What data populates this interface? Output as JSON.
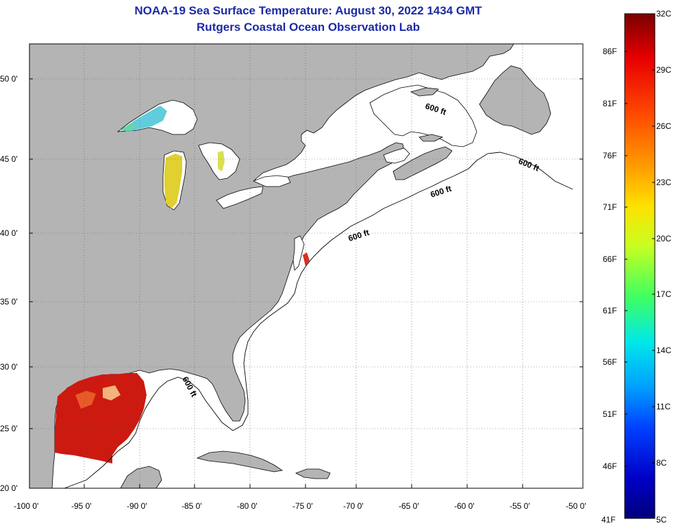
{
  "title": {
    "line1": "NOAA-19 Sea Surface Temperature:  August 30, 2022 1434 GMT",
    "line2": "Rutgers Coastal Ocean Observation Lab"
  },
  "map": {
    "lat_ticks": [
      "20 0'",
      "25 0'",
      "30 0'",
      "35 0'",
      "40 0'",
      "45 0'",
      "50 0'"
    ],
    "lon_ticks": [
      "-100 0'",
      "-95 0'",
      "-90 0'",
      "-85 0'",
      "-80 0'",
      "-75 0'",
      "-70 0'",
      "-65 0'",
      "-60 0'",
      "-55 0'",
      "-50 0'"
    ],
    "contour_labels": [
      "600 ft",
      "600 ft",
      "600 ft",
      "600 ft",
      "600 ft"
    ],
    "colors": {
      "land": "#b4b4b4",
      "ocean": "#ffffff",
      "grid": "#555555"
    }
  },
  "colorbar": {
    "celsius_labels": [
      "32C",
      "29C",
      "26C",
      "23C",
      "20C",
      "17C",
      "14C",
      "11C",
      "8C",
      "5C"
    ],
    "fahrenheit_labels": [
      "86F",
      "81F",
      "76F",
      "71F",
      "66F",
      "61F",
      "56F",
      "51F",
      "46F",
      "41F"
    ],
    "gradient": [
      "#7a0000",
      "#e80000",
      "#ff4a00",
      "#ff9a00",
      "#ffe000",
      "#c8ff20",
      "#40ff60",
      "#00e8e8",
      "#00a0ff",
      "#0040ff",
      "#0000c8",
      "#00007a"
    ]
  }
}
